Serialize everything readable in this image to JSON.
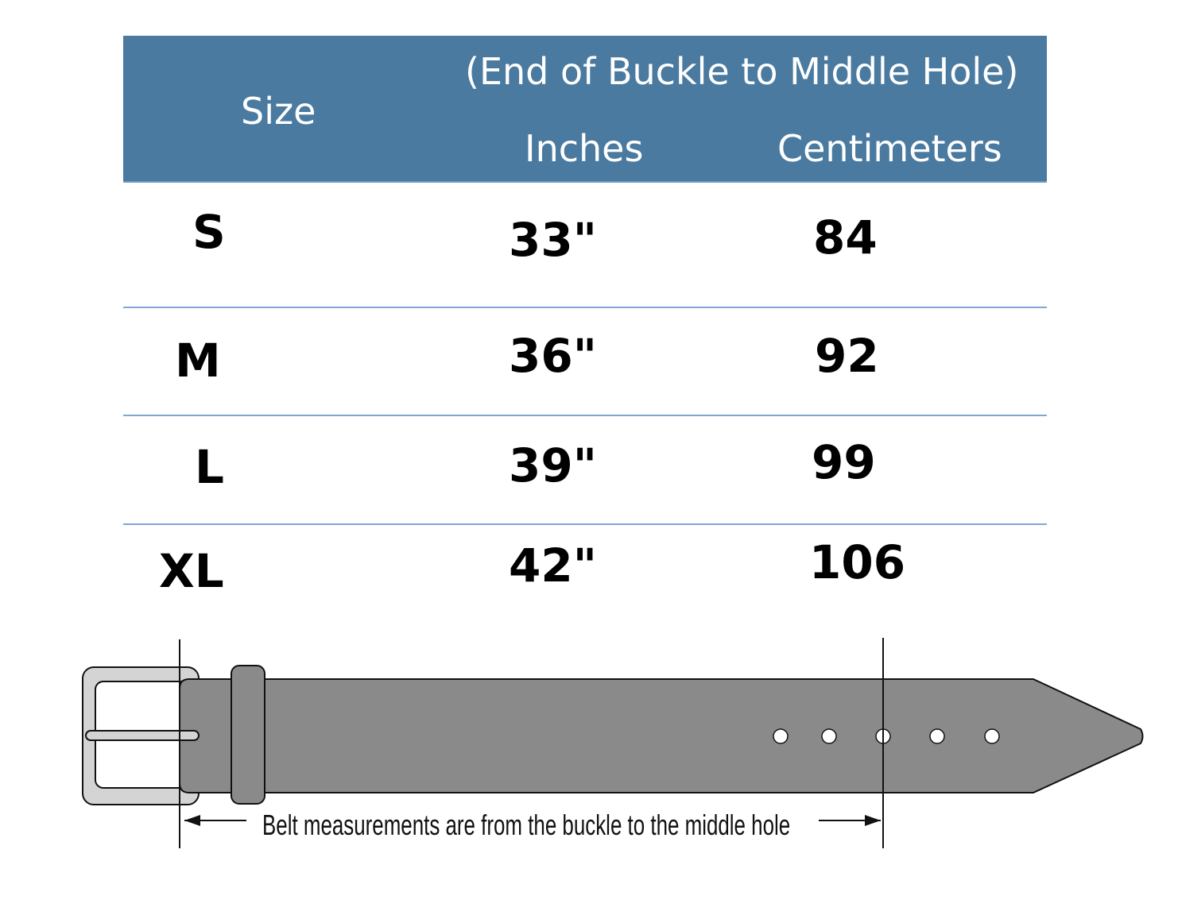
{
  "table": {
    "header": {
      "size_label": "Size",
      "measure_note": "(End of Buckle to Middle Hole)",
      "inches_label": "Inches",
      "cm_label": "Centimeters",
      "color": "#4a7aa0"
    },
    "rows": [
      {
        "size": "S",
        "inches": "33\"",
        "cm": "84"
      },
      {
        "size": "M",
        "inches": "36\"",
        "cm": "92"
      },
      {
        "size": "L",
        "inches": "39\"",
        "cm": "99"
      },
      {
        "size": "XL",
        "inches": "42\"",
        "cm": "106"
      }
    ]
  },
  "diagram": {
    "caption": "Belt measurements are from the buckle to the middle hole",
    "belt_color": "#8a8a8a",
    "buckle_color": "#d4d4d4",
    "hole_count": 5
  }
}
